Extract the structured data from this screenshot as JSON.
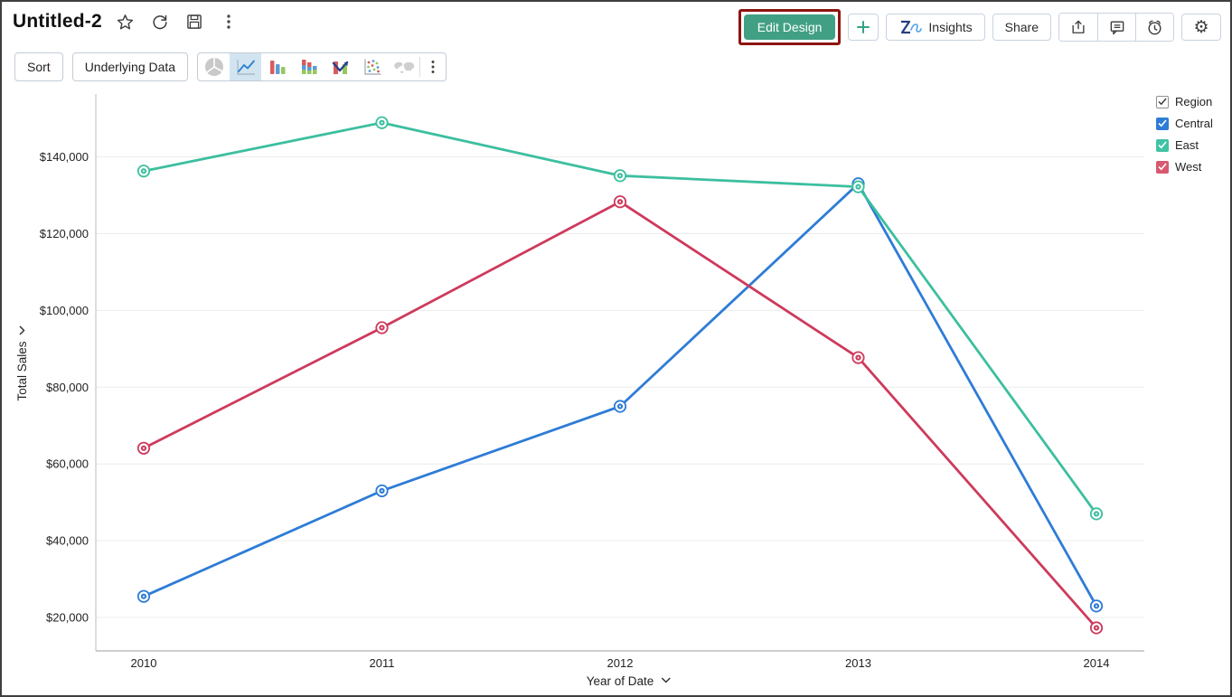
{
  "window": {
    "title": "Untitled-2"
  },
  "header": {
    "actions": {
      "edit_design": "Edit Design",
      "add": "+",
      "insights": "Insights",
      "share": "Share"
    },
    "annotation_highlight_color": "#8e1410"
  },
  "toolbar": {
    "sort": "Sort",
    "underlying_data": "Underlying Data",
    "chart_types": [
      "pie",
      "line",
      "bar",
      "stacked-bar",
      "combo",
      "scatter",
      "map"
    ],
    "selected_chart_type": "line"
  },
  "legend": {
    "title": "Region",
    "items": [
      {
        "label": "Central",
        "swatch": "#2e7cd6",
        "checked": true
      },
      {
        "label": "East",
        "swatch": "#41c3a5",
        "checked": true
      },
      {
        "label": "West",
        "swatch": "#d8596f",
        "checked": true
      }
    ]
  },
  "chart_data": {
    "type": "line",
    "x_categories": [
      "2010",
      "2011",
      "2012",
      "2013",
      "2014"
    ],
    "xlabel": "Year of Date",
    "ylabel": "Total Sales",
    "series": [
      {
        "name": "Central",
        "color": "#2e7cd6",
        "values": [
          25500,
          53000,
          75000,
          133000,
          23000
        ]
      },
      {
        "name": "East",
        "color": "#3cbf9f",
        "values": [
          136300,
          148900,
          135100,
          132200,
          47000
        ]
      },
      {
        "name": "West",
        "color": "#ce3a5c",
        "values": [
          64100,
          95500,
          128300,
          87700,
          17300
        ]
      }
    ],
    "yticks": [
      {
        "v": 20000,
        "label": "$20,000"
      },
      {
        "v": 40000,
        "label": "$40,000"
      },
      {
        "v": 60000,
        "label": "$60,000"
      },
      {
        "v": 80000,
        "label": "$80,000"
      },
      {
        "v": 100000,
        "label": "$100,000"
      },
      {
        "v": 120000,
        "label": "$120,000"
      },
      {
        "v": 140000,
        "label": "$140,000"
      }
    ],
    "ylim": [
      11300,
      155900
    ],
    "grid": "horizontal",
    "legend_position": "top-right",
    "value_prefix": "$"
  },
  "icons": {
    "favorite": "star-outline",
    "refresh": "circular-arrow",
    "save": "floppy-disk",
    "more_options": "kebab-dots",
    "add": "plus",
    "insights_logo": "zia-logo",
    "export": "box-up-arrow",
    "comment": "speech-bubble",
    "alert": "alarm-clock",
    "settings": "gear",
    "axis_dropdown": "chevron-down"
  },
  "colors": {
    "primary_button_bg": "#41a083",
    "annotation_border": "#8e1410",
    "selected_tile_bg": "#d3e4f1",
    "grid_line": "#ececec",
    "axis_line": "#bdbdbd"
  }
}
